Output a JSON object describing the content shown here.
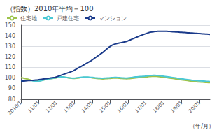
{
  "chart_data": {
    "type": "line",
    "title": "（指数）2010年平均＝100",
    "xlabel": "（年/月）",
    "categories": [
      "2010/1",
      null,
      null,
      null,
      null,
      null,
      null,
      null,
      null,
      null,
      null,
      null,
      "11/01",
      null,
      null,
      null,
      null,
      null,
      null,
      null,
      null,
      null,
      null,
      null,
      "12/01",
      null,
      null,
      null,
      null,
      null,
      null,
      null,
      null,
      null,
      null,
      null,
      "13/01",
      null,
      null,
      null,
      null,
      null,
      null,
      null,
      null,
      null,
      null,
      null,
      "14/01",
      null,
      null,
      null,
      null,
      null,
      null,
      null,
      null,
      null,
      null,
      null,
      "15/01",
      null,
      null,
      null,
      null,
      null,
      null,
      null,
      null,
      null,
      null,
      null,
      "16/01",
      null,
      null,
      null,
      null,
      null,
      null,
      null,
      null,
      null,
      null,
      null,
      "17/01",
      null,
      null,
      null,
      null,
      null,
      null,
      null,
      null,
      null,
      null,
      null,
      "18/01",
      null,
      null,
      null,
      null,
      null,
      null,
      null,
      null,
      null,
      null,
      null,
      "19/01",
      null,
      null,
      null,
      null,
      null,
      null,
      null,
      null,
      null,
      null,
      null,
      "20/01",
      null,
      null,
      null,
      null,
      null,
      null,
      null
    ],
    "series": [
      {
        "name": "住宅地",
        "color": "#9dc34a",
        "values": [
          100.5,
          100.2,
          99.8,
          99.5,
          99.2,
          98.8,
          98.4,
          98.0,
          97.7,
          97.4,
          97.2,
          97.0,
          97.2,
          97.5,
          97.8,
          98.2,
          98.5,
          98.8,
          99.0,
          99.2,
          99.4,
          99.6,
          99.8,
          100.0,
          100.3,
          100.6,
          100.8,
          101.0,
          101.0,
          100.8,
          100.6,
          100.4,
          100.2,
          100.0,
          99.8,
          99.6,
          99.7,
          99.8,
          100.0,
          100.2,
          100.4,
          100.5,
          100.6,
          100.7,
          100.7,
          100.6,
          100.5,
          100.4,
          100.2,
          100.0,
          99.8,
          99.6,
          99.5,
          99.4,
          99.3,
          99.2,
          99.3,
          99.4,
          99.5,
          99.6,
          99.7,
          99.8,
          99.9,
          100.0,
          100.0,
          99.9,
          99.8,
          99.7,
          99.6,
          99.5,
          99.4,
          99.3,
          99.4,
          99.5,
          99.7,
          99.8,
          100.0,
          100.2,
          100.3,
          100.4,
          100.5,
          100.6,
          100.7,
          100.8,
          101.0,
          101.2,
          101.4,
          101.5,
          101.6,
          101.7,
          101.7,
          101.6,
          101.5,
          101.3,
          101.1,
          101.0,
          100.8,
          100.6,
          100.4,
          100.2,
          100.0,
          99.8,
          99.6,
          99.4,
          99.2,
          99.0,
          98.8,
          98.6,
          98.4,
          98.2,
          98.0,
          97.8,
          97.6,
          97.4,
          97.2,
          97.0,
          96.8,
          96.6,
          96.5,
          96.4,
          96.3,
          96.2,
          96.1,
          96.0,
          95.9,
          95.8,
          95.7,
          95.6
        ]
      },
      {
        "name": "戸建住宅",
        "color": "#4ac8d4",
        "values": [
          97.5,
          97.6,
          97.7,
          97.8,
          97.9,
          97.9,
          97.8,
          97.6,
          97.4,
          97.2,
          97.0,
          96.9,
          97.1,
          97.4,
          97.7,
          98.1,
          98.4,
          98.8,
          99.1,
          99.3,
          99.5,
          99.7,
          99.9,
          100.1,
          100.4,
          100.7,
          101.0,
          101.2,
          101.1,
          100.9,
          100.7,
          100.5,
          100.3,
          100.1,
          99.9,
          99.8,
          99.9,
          100.1,
          100.3,
          100.5,
          100.7,
          100.8,
          100.9,
          101.0,
          101.0,
          100.9,
          100.8,
          100.7,
          100.6,
          100.4,
          100.2,
          100.1,
          100.0,
          99.9,
          99.8,
          99.8,
          99.9,
          100.0,
          100.1,
          100.2,
          100.3,
          100.4,
          100.5,
          100.6,
          100.6,
          100.5,
          100.4,
          100.3,
          100.2,
          100.1,
          100.0,
          99.9,
          100.1,
          100.3,
          100.5,
          100.7,
          100.9,
          101.1,
          101.2,
          101.3,
          101.4,
          101.5,
          101.6,
          101.7,
          101.9,
          102.1,
          102.3,
          102.4,
          102.5,
          102.6,
          102.6,
          102.5,
          102.4,
          102.2,
          102.0,
          101.9,
          101.7,
          101.5,
          101.3,
          101.1,
          100.9,
          100.7,
          100.5,
          100.3,
          100.1,
          99.9,
          99.7,
          99.5,
          99.3,
          99.1,
          98.9,
          98.7,
          98.5,
          98.3,
          98.1,
          97.9,
          97.8,
          97.7,
          97.6,
          97.5,
          97.4,
          97.3,
          97.2,
          97.1,
          97.0,
          96.9,
          96.8,
          96.7
        ]
      },
      {
        "name": "マンション",
        "color": "#1a3a8a",
        "values": [
          97.0,
          97.1,
          97.2,
          97.3,
          97.5,
          97.6,
          97.7,
          97.8,
          97.9,
          98.0,
          98.1,
          98.2,
          98.5,
          98.7,
          98.9,
          99.1,
          99.3,
          99.5,
          99.7,
          99.9,
          100.1,
          100.3,
          100.5,
          100.7,
          101.2,
          101.7,
          102.2,
          102.7,
          103.2,
          103.7,
          104.2,
          104.7,
          105.2,
          105.7,
          106.2,
          106.7,
          107.5,
          108.3,
          109.1,
          109.9,
          110.7,
          111.5,
          112.3,
          113.1,
          113.9,
          114.7,
          115.5,
          116.3,
          117.3,
          118.3,
          119.3,
          120.3,
          121.3,
          122.3,
          123.3,
          124.3,
          125.5,
          126.7,
          127.9,
          129.1,
          130.0,
          130.9,
          131.5,
          132.1,
          132.5,
          132.8,
          133.1,
          133.4,
          133.7,
          134.0,
          134.3,
          134.6,
          135.2,
          135.8,
          136.4,
          137.0,
          137.6,
          138.2,
          138.8,
          139.4,
          140.0,
          140.5,
          141.0,
          141.5,
          142.0,
          142.5,
          143.0,
          143.3,
          143.6,
          143.8,
          144.0,
          144.1,
          144.2,
          144.3,
          144.3,
          144.3,
          144.3,
          144.3,
          144.2,
          144.1,
          144.0,
          143.9,
          143.8,
          143.7,
          143.6,
          143.5,
          143.4,
          143.3,
          143.2,
          143.1,
          143.0,
          142.9,
          142.8,
          142.7,
          142.6,
          142.5,
          142.4,
          142.3,
          142.2,
          142.1,
          142.0,
          141.9,
          141.8,
          141.7,
          141.6,
          141.5,
          141.4,
          141.3
        ]
      }
    ],
    "ylim": [
      80,
      150
    ],
    "yticks": [
      80,
      90,
      100,
      110,
      120,
      130,
      140,
      150
    ],
    "grid": true,
    "legend": "upper left"
  }
}
